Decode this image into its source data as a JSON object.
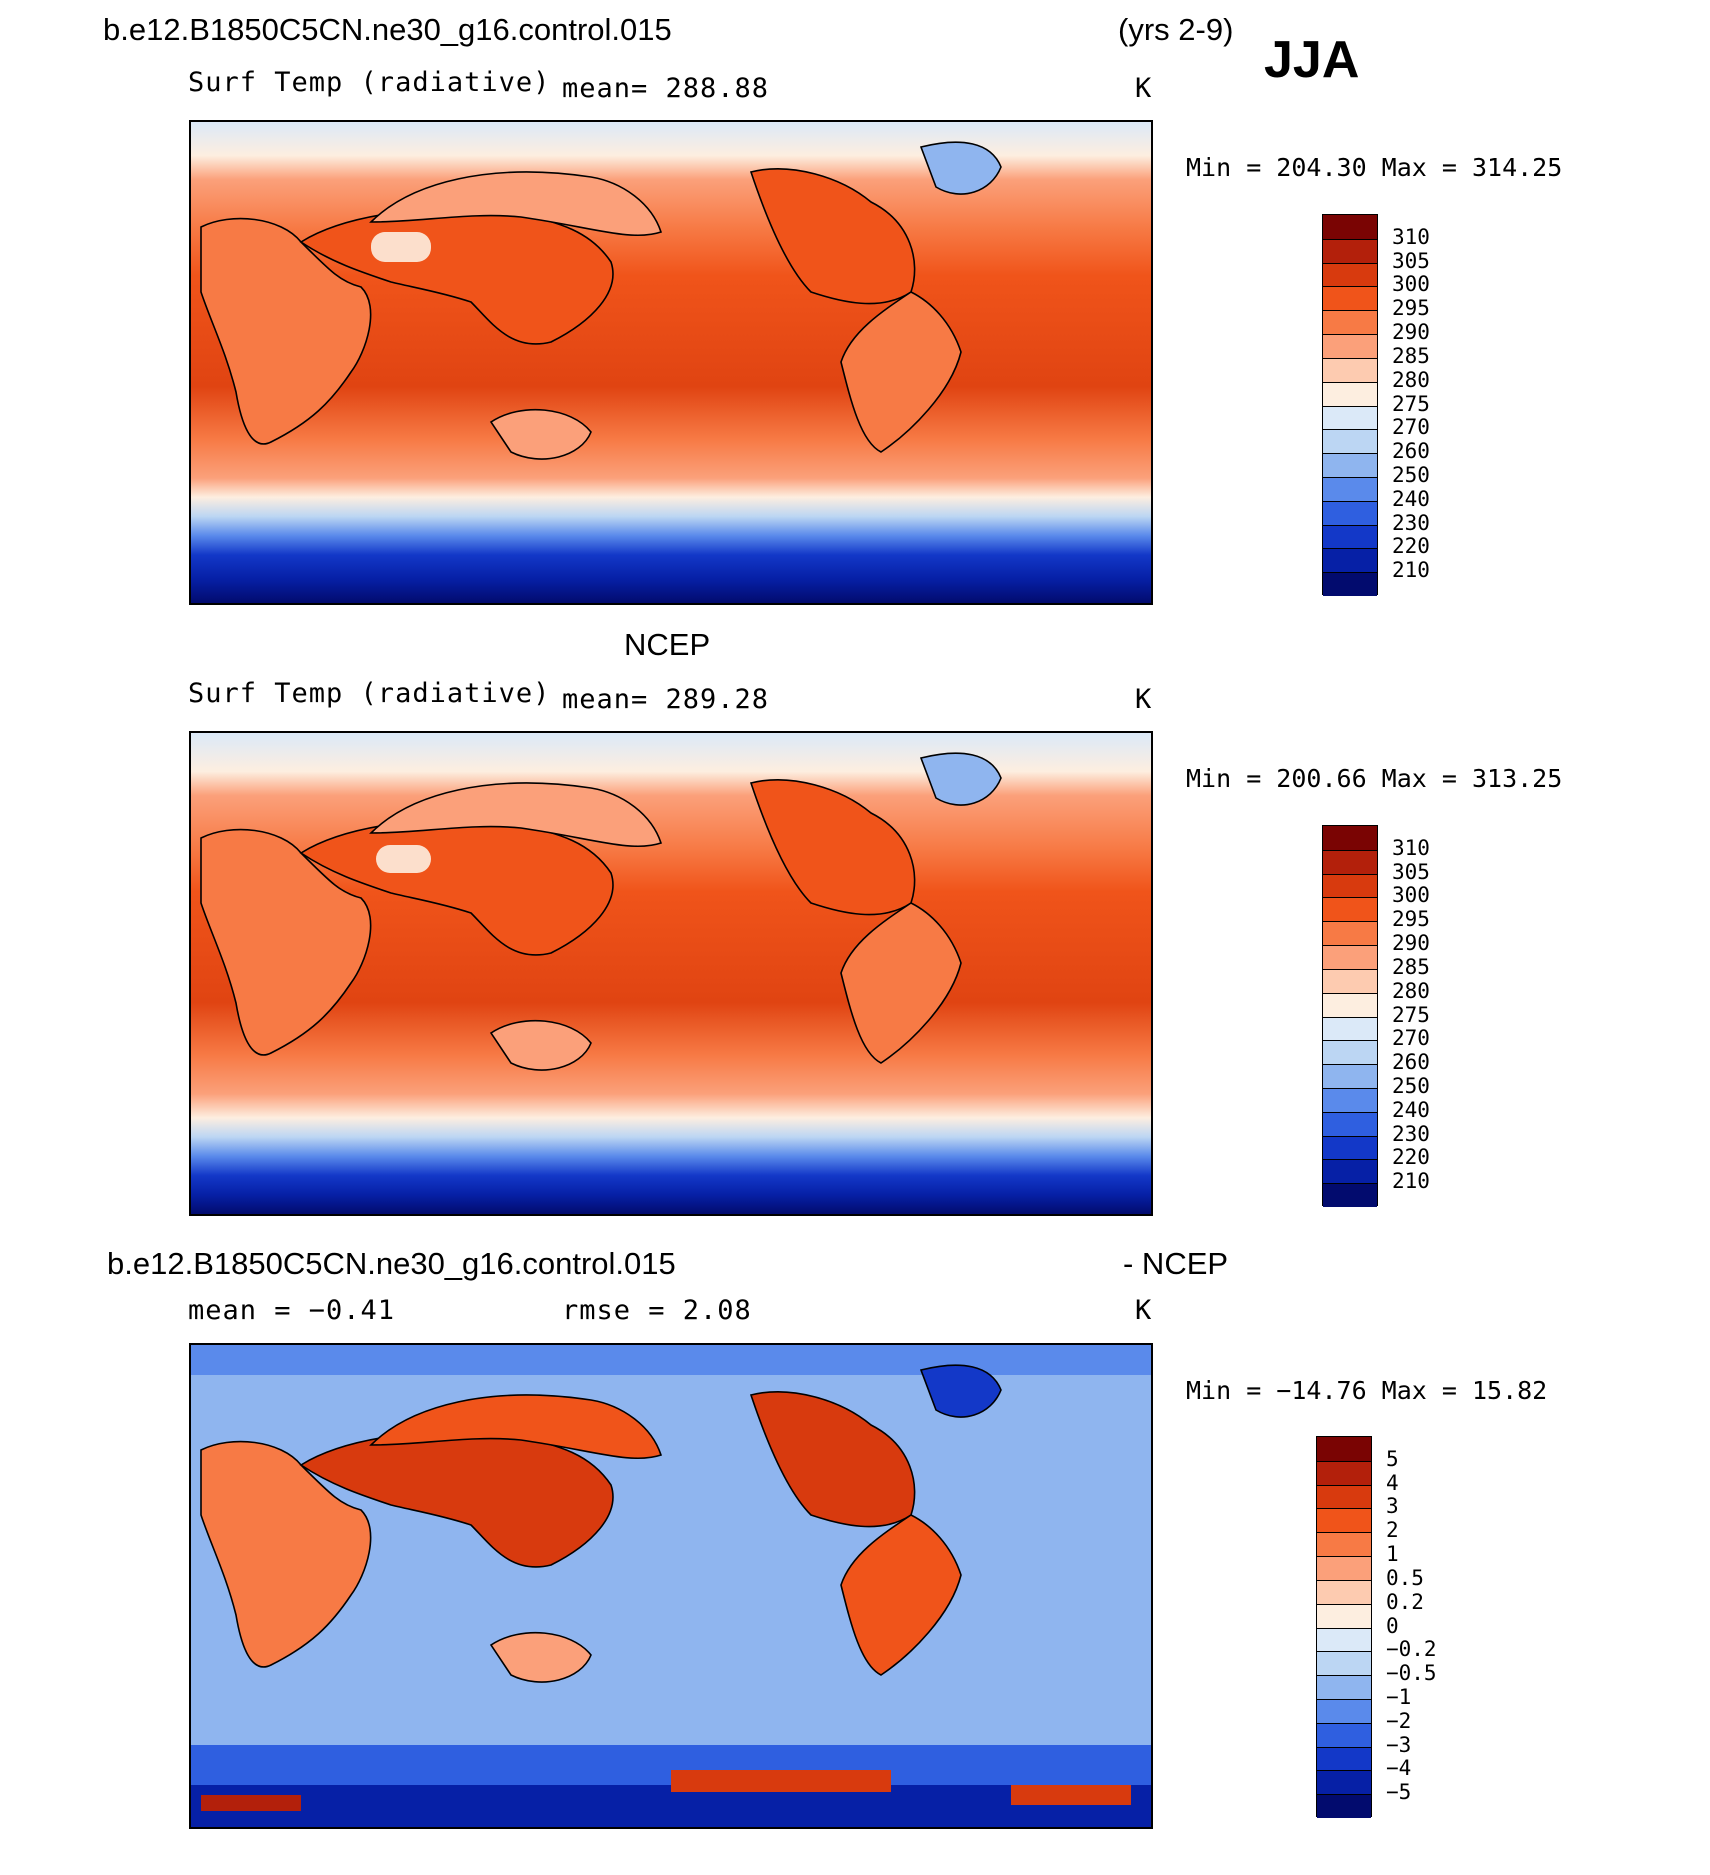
{
  "header": {
    "case_name": "b.e12.B1850C5CN.ne30_g16.control.015",
    "years": "(yrs 2-9)",
    "season": "JJA"
  },
  "panels": [
    {
      "id": "model",
      "title_left": "",
      "field": "Surf Temp (radiative)",
      "mean": "mean=  288.88",
      "units": "K",
      "min_max": "Min  =  204.30  Max  =  314.25",
      "palette": "temperature"
    },
    {
      "id": "obs",
      "title_center": "NCEP",
      "field": "Surf Temp (radiative)",
      "mean": "mean=  289.28",
      "units": "K",
      "min_max": "Min  =  200.66  Max  =  313.25",
      "palette": "temperature"
    },
    {
      "id": "diff",
      "title_left": "b.e12.B1850C5CN.ne30_g16.control.015",
      "title_right": "- NCEP",
      "mean": "mean  =   −0.41",
      "rmse": "rmse  =     2.08",
      "units": "K",
      "min_max": "Min  =  −14.76  Max  =   15.82",
      "palette": "difference"
    }
  ],
  "colorbars": {
    "temperature": {
      "labels": [
        "310",
        "305",
        "300",
        "295",
        "290",
        "285",
        "280",
        "275",
        "270",
        "260",
        "250",
        "240",
        "230",
        "220",
        "210"
      ],
      "colors": [
        "#7a0403",
        "#b3200b",
        "#d83a0e",
        "#f0541a",
        "#f77a45",
        "#fba07a",
        "#fdcbb0",
        "#fdeee0",
        "#dbe9f8",
        "#bcd6f3",
        "#8fb5ef",
        "#5a8aeb",
        "#2f5fe0",
        "#1338c8",
        "#0620a6",
        "#020b6e"
      ]
    },
    "difference": {
      "labels": [
        "5",
        "4",
        "3",
        "2",
        "1",
        "0.5",
        "0.2",
        "0",
        "−0.2",
        "−0.5",
        "−1",
        "−2",
        "−3",
        "−4",
        "−5"
      ],
      "colors": [
        "#7a0403",
        "#b3200b",
        "#d83a0e",
        "#f0541a",
        "#f77a45",
        "#fba07a",
        "#fdcbb0",
        "#fdeee0",
        "#dbe9f8",
        "#bcd6f3",
        "#8fb5ef",
        "#5a8aeb",
        "#2f5fe0",
        "#1338c8",
        "#0620a6",
        "#020b6e"
      ]
    }
  }
}
